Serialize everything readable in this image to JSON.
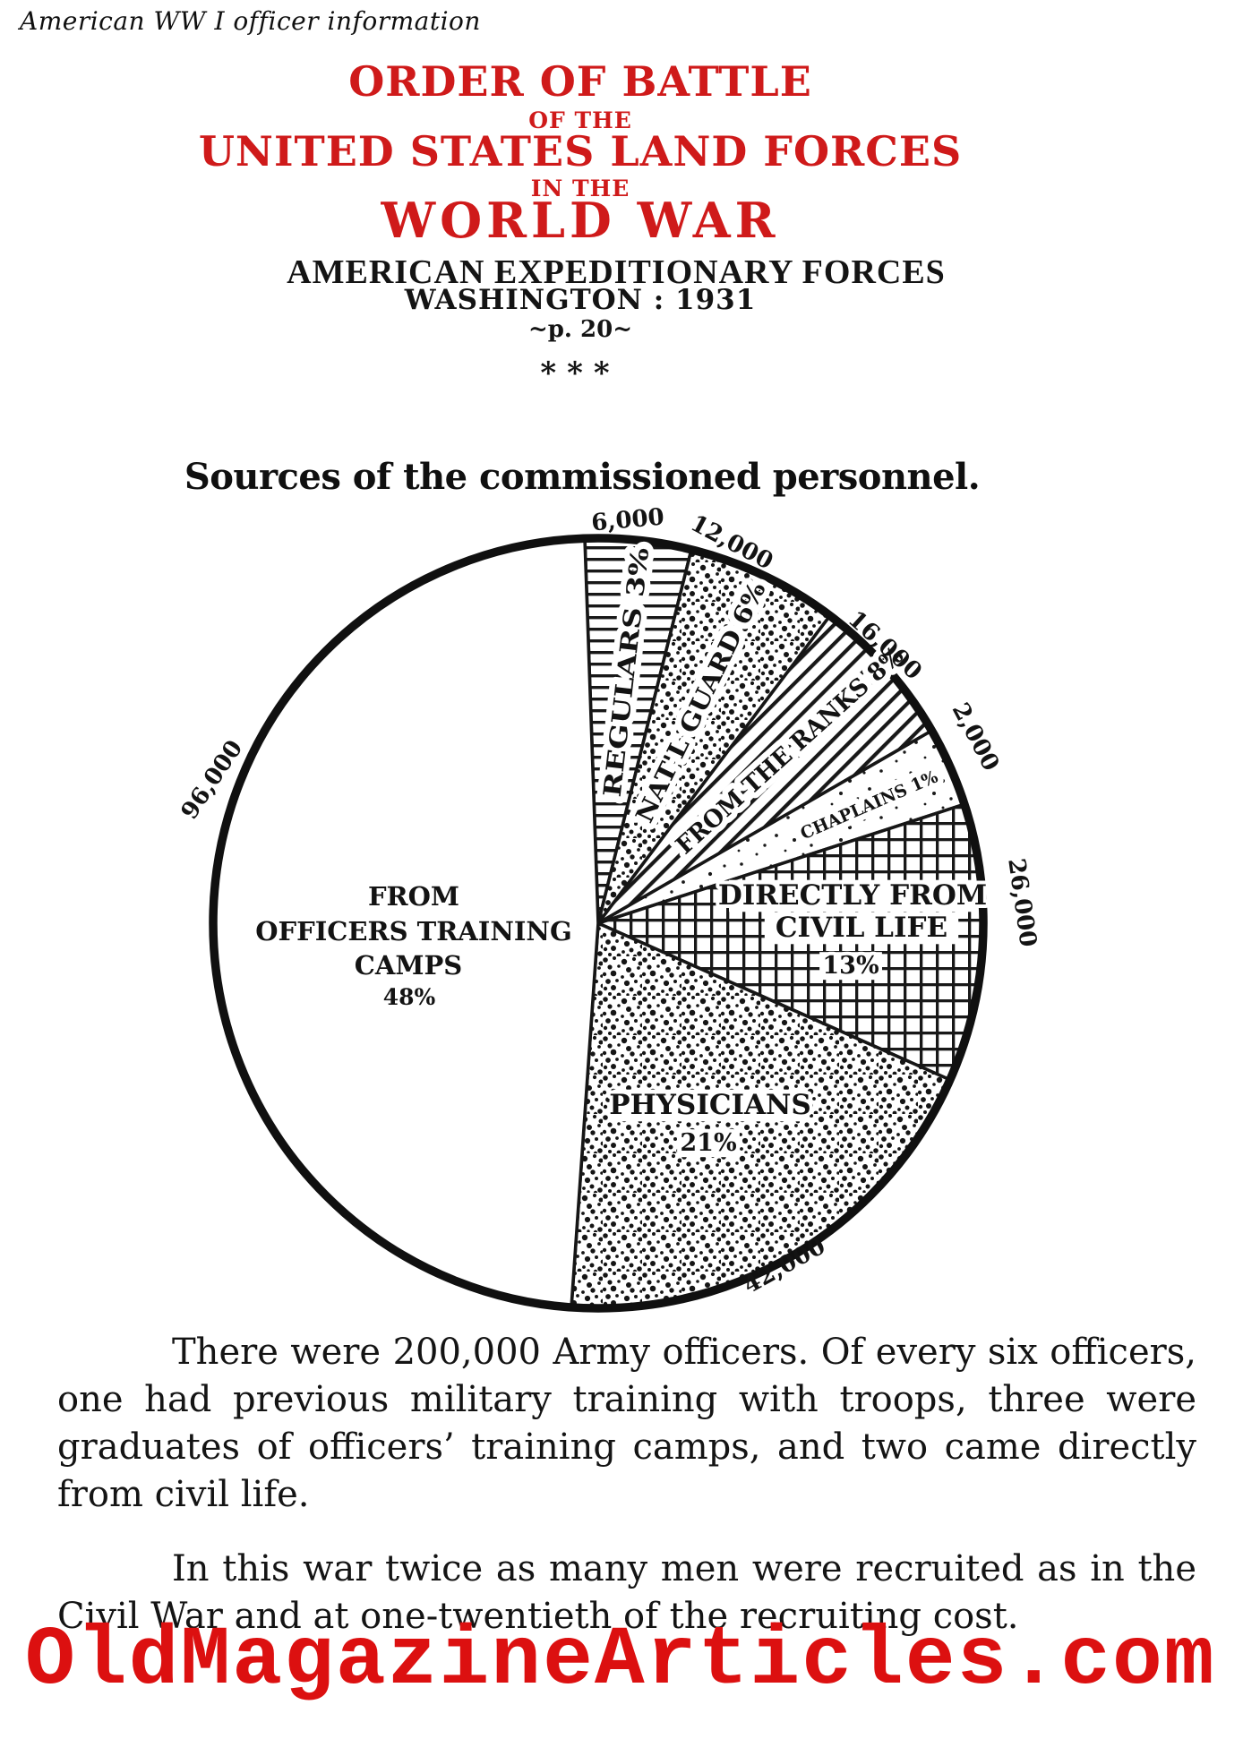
{
  "page": {
    "tagline": "American WW I officer information",
    "header": {
      "line1": "ORDER OF BATTLE",
      "line2": "OF THE",
      "line3": "UNITED STATES LAND FORCES",
      "line4": "IN THE",
      "line5": "WORLD WAR",
      "subtitle1": "AMERICAN EXPEDITIONARY FORCES",
      "subtitle2": "WASHINGTON : 1931",
      "page_ref": "~p. 20~",
      "separator": "***"
    },
    "chart_title": "Sources of the commissioned personnel.",
    "paragraphs": [
      "There were 200,000 Army officers.  Of every six officers, one had previous military training with troops, three were graduates of officers’ training camps, and two came directly from civil life.",
      "In this war twice as many men were recruited as in the Civil War and at one-twentieth of the recruiting cost."
    ],
    "footer": "OldMagazineArticles.com",
    "colors": {
      "heading_red": "#cf1a1a",
      "footer_red": "#dc1010",
      "ink": "#141414"
    }
  },
  "chart_data": {
    "type": "pie",
    "title": "Sources of the commissioned personnel.",
    "total": 200000,
    "total_label": "200,000 Army officers",
    "slices": [
      {
        "name": "REGULARS",
        "percent": 3,
        "count": 6000,
        "count_label": "6,000",
        "texture": "horizontal-lines",
        "label_lines": [
          "REGULARS 3%"
        ]
      },
      {
        "name": "NAT'L GUARD",
        "percent": 6,
        "count": 12000,
        "count_label": "12,000",
        "texture": "stipple",
        "label_lines": [
          "NAT'L GUARD 6%"
        ]
      },
      {
        "name": "FROM THE RANKS",
        "percent": 8,
        "count": 16000,
        "count_label": "16,000",
        "texture": "diagonal-lines",
        "label_lines": [
          "FROM THE RANKS 8%"
        ]
      },
      {
        "name": "CHAPLAINS",
        "percent": 1,
        "count": 2000,
        "count_label": "2,000",
        "texture": "sparse-stipple",
        "label_lines": [
          "CHAPLAINS 1%"
        ]
      },
      {
        "name": "DIRECTLY FROM CIVIL LIFE",
        "percent": 13,
        "count": 26000,
        "count_label": "26,000",
        "texture": "crosshatch",
        "label_lines": [
          "DIRECTLY FROM",
          "CIVIL LIFE",
          "13%"
        ]
      },
      {
        "name": "PHYSICIANS",
        "percent": 21,
        "count": 42000,
        "count_label": "42,000",
        "texture": "stipple",
        "label_lines": [
          "PHYSICIANS",
          "21%"
        ]
      },
      {
        "name": "FROM OFFICERS TRAINING CAMPS",
        "percent": 48,
        "count": 96000,
        "count_label": "96,000",
        "texture": "plain",
        "label_lines": [
          "FROM",
          "OFFICERS TRAINING",
          "CAMPS",
          "48%"
        ]
      }
    ],
    "legend_position": "in-slice labels",
    "grid": false
  }
}
